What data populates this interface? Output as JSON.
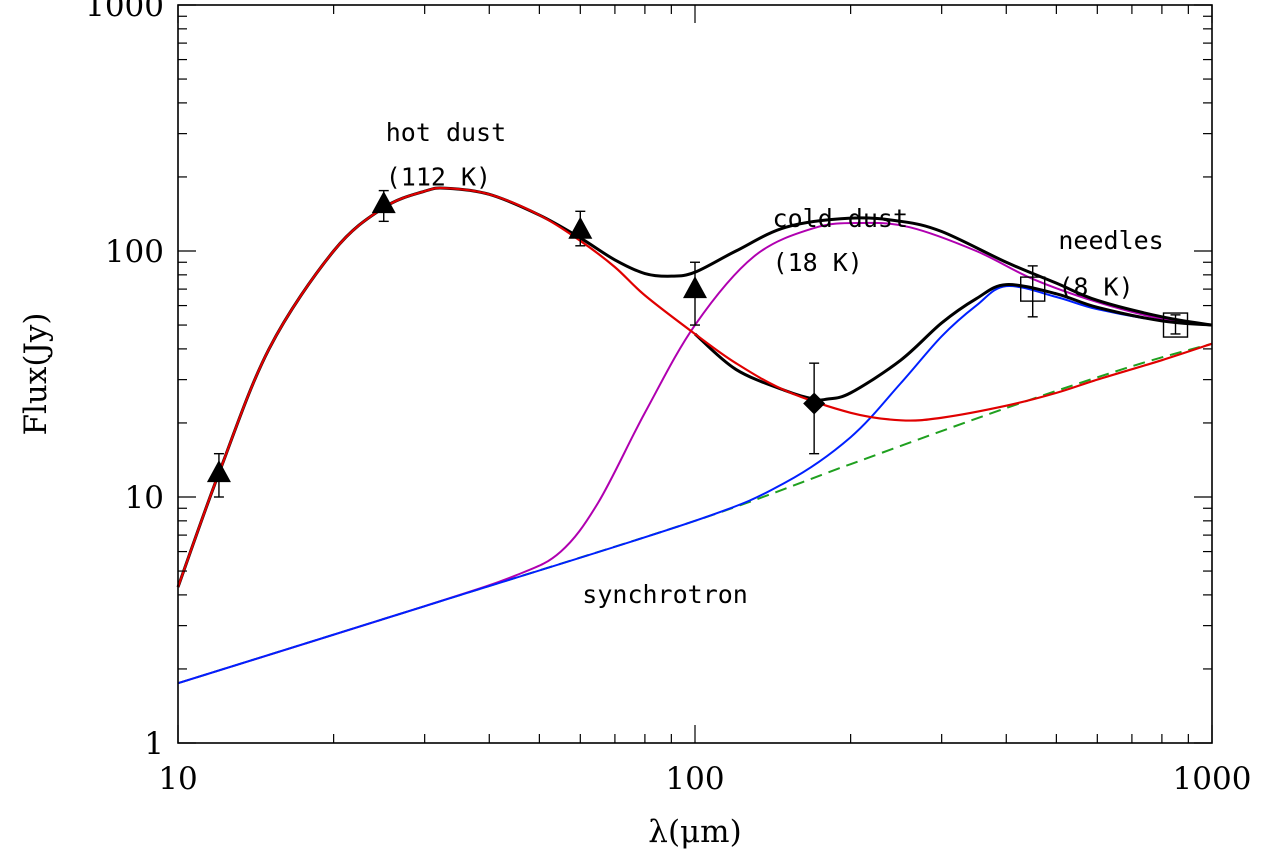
{
  "chart_data": {
    "type": "line",
    "title": "",
    "xlabel": "λ(μm)",
    "ylabel": "Flux(Jy)",
    "xscale": "log",
    "yscale": "log",
    "xlim": [
      10,
      1000
    ],
    "ylim": [
      1,
      1000
    ],
    "grid": false,
    "legend": "none",
    "x_ticks": [
      10,
      100,
      1000
    ],
    "x_tick_labels": [
      "10",
      "100",
      "1000"
    ],
    "y_ticks": [
      1,
      10,
      100,
      1000
    ],
    "y_tick_labels": [
      "1",
      "10",
      "100",
      "1000"
    ],
    "annotations": [
      {
        "text": "hot dust",
        "x": 25,
        "y": 280
      },
      {
        "text": "(112 K)",
        "x": 25,
        "y": 185
      },
      {
        "text": "cold dust",
        "x": 140,
        "y": 125
      },
      {
        "text": "(18 K)",
        "x": 140,
        "y": 83
      },
      {
        "text": "needles",
        "x": 500,
        "y": 102
      },
      {
        "text": "(8 K)",
        "x": 500,
        "y": 66
      },
      {
        "text": "synchrotron",
        "x": 60,
        "y": 3.7
      }
    ],
    "series": [
      {
        "style": "dashed",
        "color": "#1fa01f",
        "width": 2,
        "x": [
          10,
          30,
          100,
          200,
          400,
          700,
          1000
        ],
        "y": [
          1.75,
          3.6,
          8.0,
          13.6,
          23.0,
          34.0,
          42.0
        ]
      },
      {
        "style": "solid",
        "color": "#b000b0",
        "width": 2,
        "x": [
          10,
          30,
          45,
          55,
          65,
          80,
          100,
          130,
          170,
          210,
          260,
          350,
          450,
          600,
          800,
          1000
        ],
        "y": [
          1.75,
          3.6,
          4.8,
          6.0,
          9.5,
          22,
          50,
          95,
          124,
          130,
          125,
          100,
          77,
          62,
          53,
          50
        ]
      },
      {
        "style": "solid",
        "color": "#0020ff",
        "width": 2,
        "x": [
          10,
          30,
          100,
          150,
          200,
          250,
          300,
          350,
          400,
          500,
          600,
          800,
          1000
        ],
        "y": [
          1.75,
          3.6,
          8.0,
          11.5,
          17.5,
          29,
          45,
          60,
          72,
          65,
          58,
          52,
          50
        ]
      },
      {
        "style": "solid",
        "color": "#000000",
        "width": 3,
        "x": [
          10,
          12,
          15,
          20,
          25,
          30,
          33,
          40,
          50,
          60,
          70,
          80,
          90,
          100,
          120,
          150,
          200,
          250,
          300,
          400,
          500,
          600,
          800,
          1000
        ],
        "y": [
          4.3,
          12.5,
          40,
          100,
          150,
          175,
          180,
          170,
          140,
          113,
          92,
          81,
          79,
          82,
          100,
          125,
          136,
          132,
          120,
          90,
          74,
          63,
          54,
          50
        ]
      },
      {
        "style": "solid",
        "color": "#000000",
        "width": 3,
        "x": [
          100,
          120,
          150,
          170,
          180,
          200,
          250,
          300,
          350,
          400,
          500,
          600,
          800,
          1000
        ],
        "y": [
          46,
          33,
          27,
          25,
          25,
          26.5,
          36,
          51,
          64,
          73,
          67,
          59,
          52,
          50
        ]
      },
      {
        "style": "solid",
        "color": "#e00000",
        "width": 2.2,
        "x": [
          10,
          12,
          15,
          20,
          25,
          30,
          33,
          40,
          50,
          60,
          70,
          80,
          100,
          120,
          150,
          200,
          250,
          300,
          400,
          500,
          600,
          800,
          1000
        ],
        "y": [
          4.3,
          12.5,
          40,
          100,
          150,
          175,
          180,
          170,
          140,
          110,
          86,
          66,
          46,
          35,
          27,
          22,
          20.5,
          21,
          23.5,
          26.5,
          30,
          36,
          42
        ]
      }
    ],
    "points": [
      {
        "marker": "triangle-filled",
        "x": 12,
        "y": 12.5,
        "ylo": 10,
        "yhi": 15
      },
      {
        "marker": "triangle-filled",
        "x": 25,
        "y": 155,
        "ylo": 132,
        "yhi": 176
      },
      {
        "marker": "triangle-filled",
        "x": 60,
        "y": 122,
        "ylo": 105,
        "yhi": 145
      },
      {
        "marker": "triangle-filled",
        "x": 100,
        "y": 70,
        "ylo": 50,
        "yhi": 90
      },
      {
        "marker": "diamond-filled",
        "x": 170,
        "y": 24,
        "ylo": 15,
        "yhi": 35
      },
      {
        "marker": "square-open",
        "x": 450,
        "y": 70,
        "ylo": 54,
        "yhi": 87
      },
      {
        "marker": "square-open",
        "x": 850,
        "y": 50,
        "ylo": 46,
        "yhi": 55
      }
    ]
  }
}
